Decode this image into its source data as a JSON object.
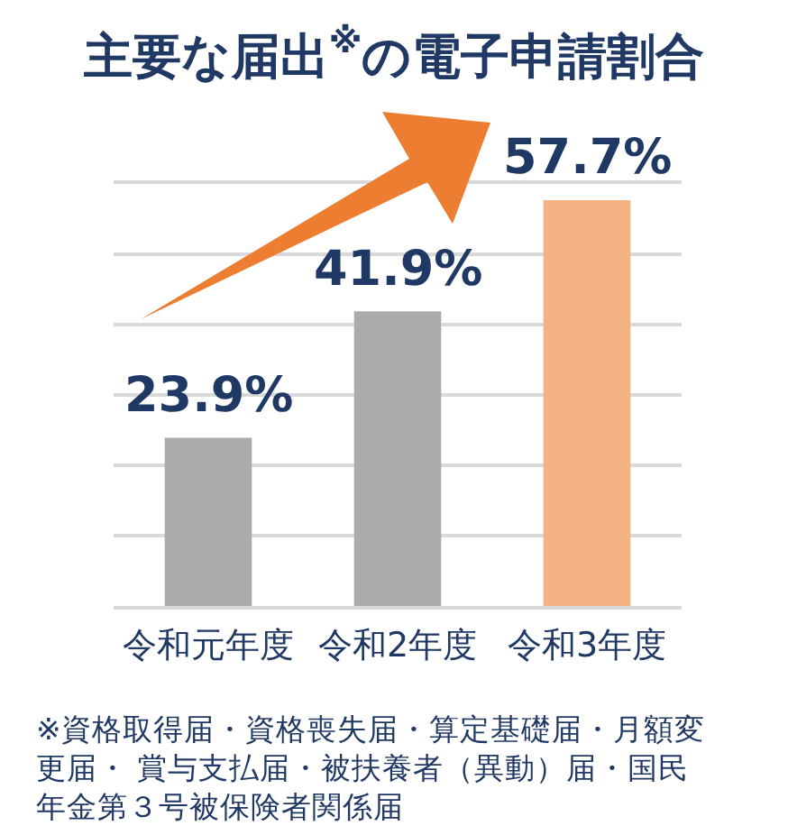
{
  "chart_data": {
    "type": "bar",
    "title": "主要な届出$^{※}$の電子申請割合",
    "categories": [
      "令和元年度",
      "令和2年度",
      "令和3年度"
    ],
    "values": [
      23.9,
      41.9,
      57.7
    ],
    "colors": [
      "#ababab",
      "#ababab",
      "#f4b183"
    ],
    "value_labels": [
      "23.9%",
      "41.9%",
      "57.7%"
    ],
    "ylim": [
      0,
      60
    ],
    "yticks": [
      {
        "value": 0,
        "label": null
      },
      {
        "value": 10,
        "label": null
      },
      {
        "value": 20,
        "label": null
      },
      {
        "value": 30,
        "label": null
      },
      {
        "value": 40,
        "label": null
      },
      {
        "value": 50,
        "label": null
      },
      {
        "value": 60,
        "label": null
      }
    ],
    "grid": "y",
    "tick_labels": "x",
    "annotations": [
      "※資格取得届・資格喪失届・算定基礎届・月額変更届・ 賞与支払届・被扶養者（異動）届・国民年金第３号被保険者関係届"
    ]
  }
}
